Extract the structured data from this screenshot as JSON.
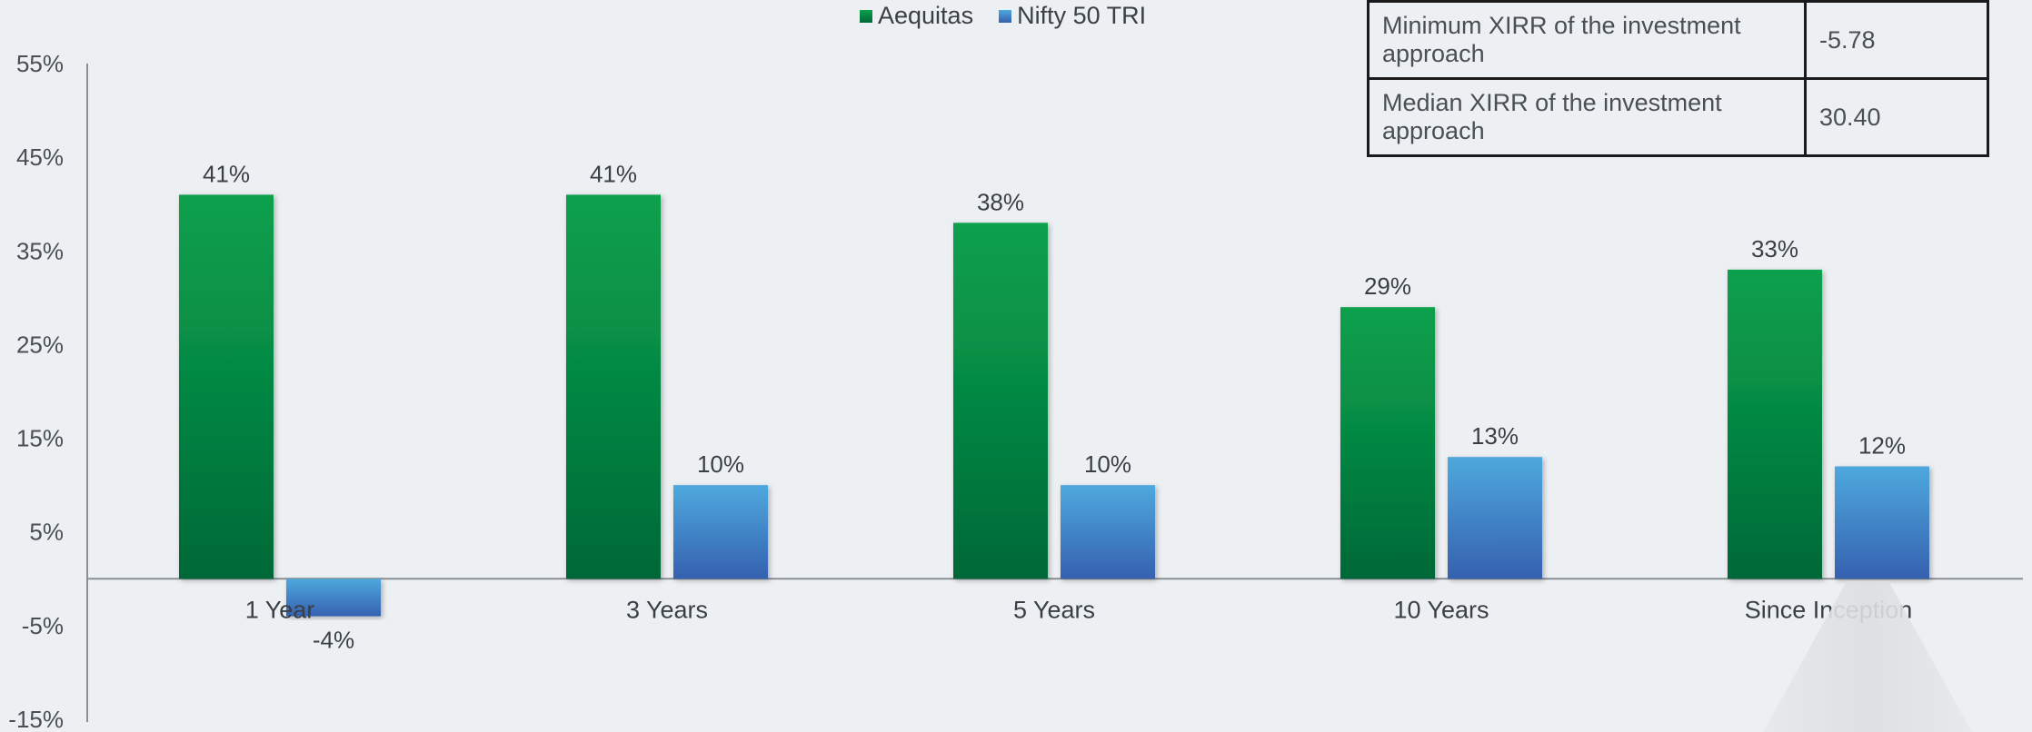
{
  "chart_data": {
    "type": "bar",
    "categories": [
      "1 Year",
      "3 Years",
      "5 Years",
      "10 Years",
      "Since Inception"
    ],
    "series": [
      {
        "name": "Aequitas",
        "values": [
          41,
          41,
          38,
          29,
          33
        ],
        "labels": [
          "41%",
          "41%",
          "38%",
          "29%",
          "33%"
        ]
      },
      {
        "name": "Nifty 50 TRI",
        "values": [
          -4,
          10,
          10,
          13,
          12
        ],
        "labels": [
          "-4%",
          "10%",
          "10%",
          "13%",
          "12%"
        ]
      }
    ],
    "ylim": [
      -15,
      55
    ],
    "yticks": [
      55,
      45,
      35,
      25,
      15,
      5,
      -5,
      -15
    ],
    "ytick_labels": [
      "55%",
      "45%",
      "35%",
      "25%",
      "15%",
      "5%",
      "-5%",
      "-15%"
    ],
    "legend_position": "top-center",
    "grid": false
  },
  "legend": {
    "items": [
      {
        "label": "Aequitas",
        "color": "#0a8c45"
      },
      {
        "label": "Nifty 50 TRI",
        "color": "#3f86cf"
      }
    ]
  },
  "xirr_table": {
    "rows": [
      {
        "label": "Minimum XIRR of the investment approach",
        "value": "-5.78"
      },
      {
        "label": "Median XIRR of the investment approach",
        "value": "30.40"
      }
    ]
  },
  "colors": {
    "aequitas_top": "#0aa04d",
    "aequitas_bottom": "#006837",
    "nifty_top": "#4ea8dd",
    "nifty_bottom": "#3561b0",
    "axis": "#8a8f94"
  }
}
